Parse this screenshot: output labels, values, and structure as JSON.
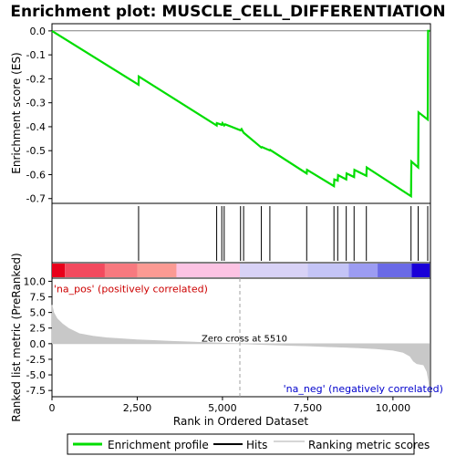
{
  "title": "Enrichment plot: MUSCLE_CELL_DIFFERENTIATION",
  "colors": {
    "es_line": "#00dd00",
    "hits": "#000000",
    "metric": "#c8c8c8",
    "zero_line": "#a0a0a0",
    "pos_label": "#cc0000",
    "neg_label": "#0000cc"
  },
  "chart_data": [
    {
      "type": "line",
      "ylabel": "Enrichment score (ES)",
      "xlim": [
        0,
        11100
      ],
      "ylim": [
        -0.72,
        0.03
      ],
      "yticks": [
        0.0,
        -0.1,
        -0.2,
        -0.3,
        -0.4,
        -0.5,
        -0.6,
        -0.7
      ],
      "ytick_labels": [
        "0.0",
        "-0.1",
        "-0.2",
        "-0.3",
        "-0.4",
        "-0.5",
        "-0.6",
        "-0.7"
      ],
      "series": [
        {
          "name": "Enrichment profile",
          "x": [
            0,
            2540,
            2545,
            4830,
            4835,
            4980,
            5000,
            5050,
            5080,
            5530,
            5560,
            5620,
            6140,
            6160,
            6390,
            6400,
            7470,
            7480,
            8270,
            8280,
            8380,
            8390,
            8630,
            8640,
            8860,
            8870,
            9220,
            9230,
            10530,
            10540,
            10740,
            10750,
            11020,
            11030,
            11080
          ],
          "y": [
            0.0,
            -0.225,
            -0.19,
            -0.395,
            -0.385,
            -0.392,
            -0.385,
            -0.395,
            -0.39,
            -0.415,
            -0.41,
            -0.425,
            -0.487,
            -0.485,
            -0.499,
            -0.497,
            -0.595,
            -0.58,
            -0.648,
            -0.62,
            -0.625,
            -0.602,
            -0.62,
            -0.595,
            -0.61,
            -0.58,
            -0.605,
            -0.57,
            -0.69,
            -0.545,
            -0.57,
            -0.34,
            -0.37,
            0.0,
            0.0
          ]
        }
      ]
    },
    {
      "type": "scatter",
      "series": [
        {
          "name": "Hits",
          "x": [
            2540,
            4830,
            4980,
            5050,
            5530,
            5620,
            6140,
            6390,
            7470,
            8270,
            8380,
            8630,
            8860,
            9220,
            10530,
            10740,
            11020
          ]
        }
      ]
    },
    {
      "type": "area",
      "ylabel": "Ranked list metric (PreRanked)",
      "xlabel": "Rank in Ordered Dataset",
      "xlim": [
        0,
        11100
      ],
      "ylim": [
        -8.5,
        10.5
      ],
      "yticks": [
        10.0,
        7.5,
        5.0,
        2.5,
        0.0,
        -2.5,
        -5.0,
        -7.5
      ],
      "ytick_labels": [
        "10.0",
        "7.5",
        "5.0",
        "2.5",
        "0.0",
        "-2.5",
        "-5.0",
        "-7.5"
      ],
      "xticks": [
        0,
        2500,
        5000,
        7500,
        10000
      ],
      "xtick_labels": [
        "0",
        "2,500",
        "5,000",
        "7,500",
        "10,000"
      ],
      "series": [
        {
          "name": "Ranking metric scores",
          "x": [
            0,
            50,
            150,
            300,
            500,
            800,
            1200,
            1600,
            2000,
            2500,
            3000,
            3500,
            4000,
            4500,
            5000,
            5510,
            6000,
            6500,
            7000,
            7500,
            8000,
            8500,
            9000,
            9500,
            10000,
            10300,
            10500,
            10600,
            10700,
            10900,
            11000,
            11050,
            11080
          ],
          "y": [
            6.2,
            5.0,
            4.0,
            3.2,
            2.4,
            1.6,
            1.2,
            0.95,
            0.8,
            0.62,
            0.5,
            0.38,
            0.28,
            0.18,
            0.08,
            0.0,
            -0.1,
            -0.18,
            -0.27,
            -0.35,
            -0.45,
            -0.55,
            -0.65,
            -0.8,
            -1.05,
            -1.4,
            -2.0,
            -2.8,
            -3.2,
            -3.4,
            -4.5,
            -6.0,
            -7.6
          ]
        }
      ],
      "annotations": [
        {
          "text": "'na_pos' (positively correlated)",
          "x": 50,
          "y": 8.5
        },
        {
          "text": "Zero cross at 5510",
          "x": 5510,
          "y": 0.5
        },
        {
          "text": "'na_neg' (negatively correlated)",
          "x": 7800,
          "y": -7.6
        }
      ]
    }
  ],
  "legend": {
    "position": "bottom",
    "items": [
      {
        "label": "Enrichment profile",
        "color": "#00dd00"
      },
      {
        "label": "Hits",
        "color": "#000000"
      },
      {
        "label": "Ranking metric scores",
        "color": "#c8c8c8"
      }
    ]
  }
}
